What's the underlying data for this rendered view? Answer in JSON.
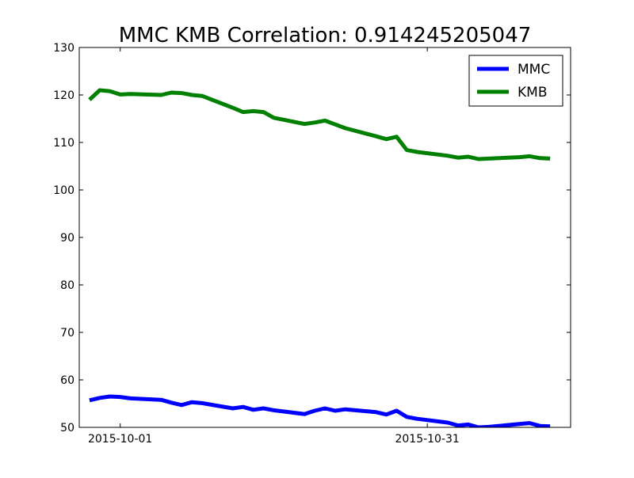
{
  "chart_data": {
    "type": "line",
    "title": "MMC KMB Correlation: 0.914245205047",
    "xlabel": "",
    "ylabel": "",
    "x": [
      "2015-09-28",
      "2015-09-29",
      "2015-09-30",
      "2015-10-01",
      "2015-10-02",
      "2015-10-05",
      "2015-10-06",
      "2015-10-07",
      "2015-10-08",
      "2015-10-09",
      "2015-10-12",
      "2015-10-13",
      "2015-10-14",
      "2015-10-15",
      "2015-10-16",
      "2015-10-19",
      "2015-10-20",
      "2015-10-21",
      "2015-10-22",
      "2015-10-23",
      "2015-10-26",
      "2015-10-27",
      "2015-10-28",
      "2015-10-29",
      "2015-10-30",
      "2015-11-02",
      "2015-11-03",
      "2015-11-04",
      "2015-11-05",
      "2015-11-06",
      "2015-11-09",
      "2015-11-10",
      "2015-11-11",
      "2015-11-12"
    ],
    "x_is_dates": true,
    "xlim": [
      "2015-09-27",
      "2015-11-14"
    ],
    "xticks": [
      "2015-10-01",
      "2015-10-31"
    ],
    "ylim": [
      50,
      130
    ],
    "yticks": [
      50,
      60,
      70,
      80,
      90,
      100,
      110,
      120,
      130
    ],
    "grid": false,
    "legend_position": "top-right",
    "series": [
      {
        "name": "MMC",
        "color": "#0000ff",
        "values": [
          55.7,
          56.2,
          56.5,
          56.4,
          56.1,
          55.8,
          55.2,
          54.7,
          55.3,
          55.1,
          54.0,
          54.3,
          53.7,
          54.0,
          53.6,
          52.8,
          53.5,
          54.0,
          53.5,
          53.8,
          53.2,
          52.7,
          53.5,
          52.2,
          51.8,
          51.0,
          50.4,
          50.6,
          50.0,
          50.1,
          50.7,
          50.9,
          50.3,
          50.2
        ]
      },
      {
        "name": "KMB",
        "color": "#008000",
        "values": [
          119.0,
          121.0,
          120.8,
          120.1,
          120.2,
          120.0,
          120.5,
          120.4,
          120.0,
          119.8,
          117.3,
          116.4,
          116.6,
          116.4,
          115.2,
          113.9,
          114.2,
          114.6,
          113.8,
          113.0,
          111.3,
          110.7,
          111.2,
          108.4,
          108.0,
          107.2,
          106.8,
          107.0,
          106.5,
          106.6,
          106.9,
          107.1,
          106.7,
          106.6
        ]
      }
    ]
  }
}
